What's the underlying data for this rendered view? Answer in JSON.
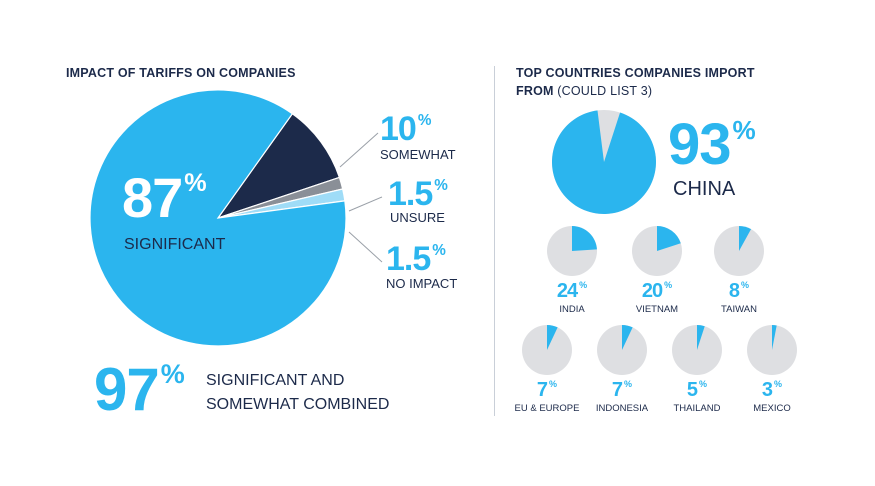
{
  "colors": {
    "accent": "#2bb5ee",
    "navy": "#1c2a4a",
    "grey": "#8a8f97",
    "light_blue": "#9fdcf7",
    "pie_bg": "#dedfe2",
    "white": "#ffffff"
  },
  "left": {
    "title": "IMPACT OF TARIFFS ON COMPANIES",
    "big": {
      "value": "87",
      "label": "SIGNIFICANT"
    },
    "callouts": [
      {
        "value": "10",
        "label": "SOMEWHAT"
      },
      {
        "value": "1.5",
        "label": "UNSURE"
      },
      {
        "value": "1.5",
        "label": "NO IMPACT"
      }
    ],
    "combined": {
      "value": "97",
      "line1": "SIGNIFICANT AND",
      "line2": "SOMEWHAT COMBINED"
    },
    "pct_sign": "%"
  },
  "right": {
    "title_bold_1": "TOP COUNTRIES COMPANIES IMPORT",
    "title_bold_2": "FROM",
    "title_light": " (COULD LIST 3)",
    "china": {
      "value": "93",
      "label": "CHINA"
    }
  },
  "chart_data": [
    {
      "type": "pie",
      "title": "IMPACT OF TARIFFS ON COMPANIES",
      "slices": [
        {
          "label": "SIGNIFICANT",
          "value": 87,
          "color": "#2bb5ee"
        },
        {
          "label": "SOMEWHAT",
          "value": 10,
          "color": "#1c2a4a"
        },
        {
          "label": "UNSURE",
          "value": 1.5,
          "color": "#8a8f97"
        },
        {
          "label": "NO IMPACT",
          "value": 1.5,
          "color": "#9fdcf7"
        }
      ]
    },
    {
      "type": "pie",
      "title": "TOP COUNTRIES COMPANIES IMPORT FROM (COULD LIST 3)",
      "items": [
        {
          "label": "CHINA",
          "value": 93
        },
        {
          "label": "INDIA",
          "value": 24
        },
        {
          "label": "VIETNAM",
          "value": 20
        },
        {
          "label": "TAIWAN",
          "value": 8
        },
        {
          "label": "EU & EUROPE",
          "value": 7
        },
        {
          "label": "INDONESIA",
          "value": 7
        },
        {
          "label": "THAILAND",
          "value": 5
        },
        {
          "label": "MEXICO",
          "value": 3
        }
      ]
    }
  ]
}
